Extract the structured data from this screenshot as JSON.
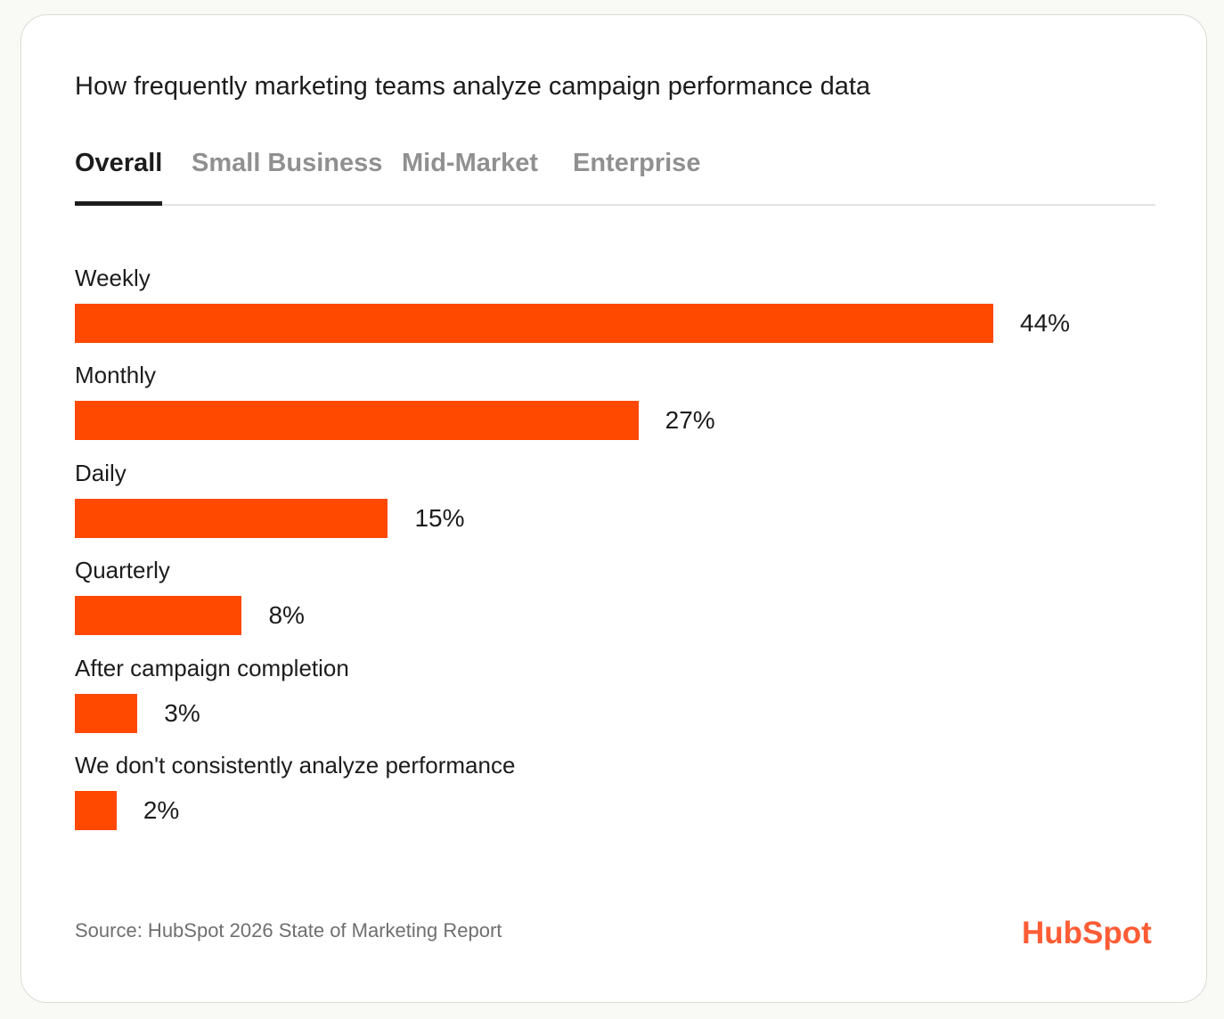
{
  "title": "How frequently marketing teams analyze campaign performance data",
  "tabs": [
    {
      "label": "Overall",
      "active": true
    },
    {
      "label": "Small Business",
      "active": false
    },
    {
      "label": "Mid-Market",
      "active": false
    },
    {
      "label": "Enterprise",
      "active": false
    }
  ],
  "colors": {
    "bar": "#ff4800",
    "logo": "#ff5c35",
    "active_tab": "#1c1c1c",
    "inactive_tab": "#909090"
  },
  "chart_data": {
    "type": "bar",
    "orientation": "horizontal",
    "categories": [
      "Weekly",
      "Monthly",
      "Daily",
      "Quarterly",
      "After campaign completion",
      "We don't consistently analyze performance"
    ],
    "values": [
      44,
      27,
      15,
      8,
      3,
      2
    ],
    "value_labels": [
      "44%",
      "27%",
      "15%",
      "8%",
      "3%",
      "2%"
    ],
    "unit": "%",
    "xlim": [
      0,
      44
    ],
    "grid": false,
    "legend": "none"
  },
  "source": "Source: HubSpot 2026 State of Marketing Report",
  "logo": {
    "text": "HubSpot",
    "icon": "hubspot-sprocket-icon"
  }
}
